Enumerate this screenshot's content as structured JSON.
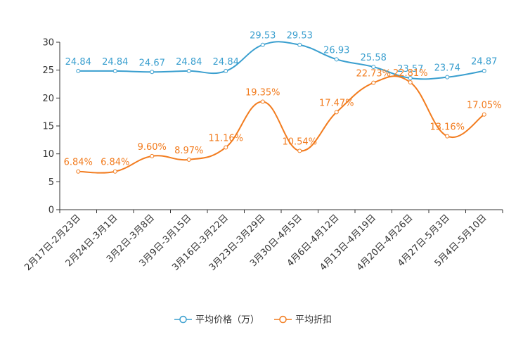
{
  "chart_data": {
    "type": "line",
    "categories": [
      "2月17日-2月23日",
      "2月24日-3月1日",
      "3月2日-3月8日",
      "3月9日-3月15日",
      "3月16日-3月22日",
      "3月23日-3月29日",
      "3月30日-4月5日",
      "4月6日-4月12日",
      "4月13日-4月19日",
      "4月20日-4月26日",
      "4月27日-5月3日",
      "5月4日-5月10日"
    ],
    "ylim": [
      0,
      30
    ],
    "yticks": [
      0,
      5,
      10,
      15,
      20,
      25,
      30
    ],
    "series": [
      {
        "name": "平均价格（万）",
        "color": "#3a9fcf",
        "values": [
          24.84,
          24.84,
          24.67,
          24.84,
          24.84,
          29.53,
          29.53,
          26.93,
          25.58,
          23.57,
          23.74,
          24.87
        ],
        "labels": [
          "24.84",
          "24.84",
          "24.67",
          "24.84",
          "24.84",
          "29.53",
          "29.53",
          "26.93",
          "25.58",
          "23.57",
          "23.74",
          "24.87"
        ]
      },
      {
        "name": "平均折扣",
        "color": "#f27c1f",
        "values": [
          6.84,
          6.84,
          9.6,
          8.97,
          11.16,
          19.35,
          10.54,
          17.47,
          22.73,
          22.81,
          13.16,
          17.05
        ],
        "labels": [
          "6.84%",
          "6.84%",
          "9.60%",
          "8.97%",
          "11.16%",
          "19.35%",
          "10.54%",
          "17.47%",
          "22.73%",
          "22.81%",
          "13.16%",
          "17.05%"
        ]
      }
    ],
    "legend_position": "bottom-center"
  }
}
